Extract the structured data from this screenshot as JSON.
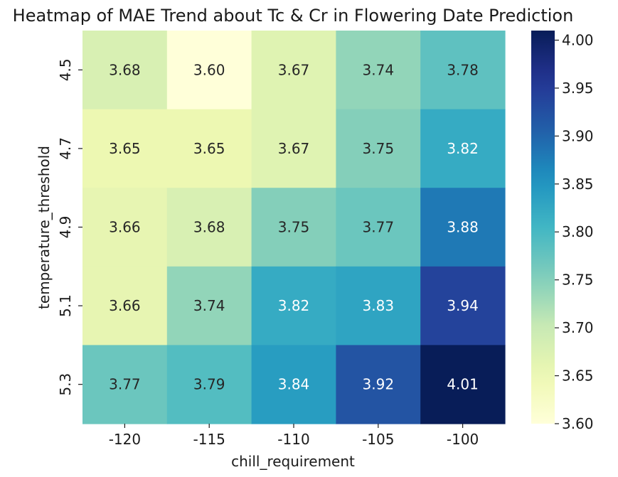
{
  "chart_data": {
    "type": "heatmap",
    "title": "Heatmap of MAE Trend about Tc & Cr in Flowering Date Prediction",
    "xlabel": "chill_requirement",
    "ylabel": "temperature_threshold",
    "x_categories": [
      "-120",
      "-115",
      "-110",
      "-105",
      "-100"
    ],
    "y_categories": [
      "4.5",
      "4.7",
      "4.9",
      "5.1",
      "5.3"
    ],
    "values": [
      [
        3.68,
        3.6,
        3.67,
        3.74,
        3.78
      ],
      [
        3.65,
        3.65,
        3.67,
        3.75,
        3.82
      ],
      [
        3.66,
        3.68,
        3.75,
        3.77,
        3.88
      ],
      [
        3.66,
        3.74,
        3.82,
        3.83,
        3.94
      ],
      [
        3.77,
        3.79,
        3.84,
        3.92,
        4.01
      ]
    ],
    "value_labels": [
      [
        "3.68",
        "3.60",
        "3.67",
        "3.74",
        "3.78"
      ],
      [
        "3.65",
        "3.65",
        "3.67",
        "3.75",
        "3.82"
      ],
      [
        "3.66",
        "3.68",
        "3.75",
        "3.77",
        "3.88"
      ],
      [
        "3.66",
        "3.74",
        "3.82",
        "3.83",
        "3.94"
      ],
      [
        "3.77",
        "3.79",
        "3.84",
        "3.92",
        "4.01"
      ]
    ],
    "colorbar": {
      "colormap": "YlGnBu",
      "range": [
        3.6,
        4.01
      ],
      "ticks": [
        "3.60",
        "3.65",
        "3.70",
        "3.75",
        "3.80",
        "3.85",
        "3.90",
        "3.95",
        "4.00"
      ]
    }
  }
}
